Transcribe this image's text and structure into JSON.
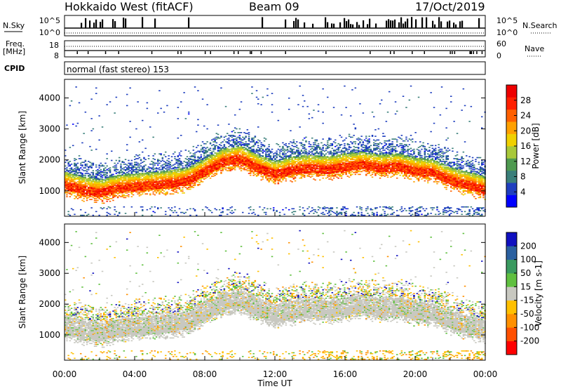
{
  "header": {
    "title": "Hokkaido West (fitACF)",
    "beam": "Beam 09",
    "date": "17/Oct/2019"
  },
  "noise_panel": {
    "left_label": "N.Sky",
    "right_label": "N.Search",
    "y_top": "10^5",
    "y_bottom": "10^0",
    "r_top": "10^5",
    "r_bottom": "10^0"
  },
  "freq_panel": {
    "left_label": "Freq.",
    "left_unit": "[MHz]",
    "right_label": "Nave",
    "y_top": "18",
    "y_bottom": "8",
    "r_top": "60",
    "r_bottom": "0"
  },
  "cpid": {
    "label": "CPID",
    "mode": "normal (fast stereo) 153"
  },
  "power_colorbar": {
    "title": "Power [dB]",
    "ticks": [
      "4",
      "8",
      "12",
      "16",
      "20",
      "24",
      "28"
    ],
    "colors": [
      "#0000ff",
      "#1f3fbf",
      "#3a7f7a",
      "#4f9a50",
      "#a8c83a",
      "#f0d000",
      "#ffa000",
      "#ff6000",
      "#ff2000",
      "#ee0000"
    ]
  },
  "velocity_colorbar": {
    "title": "Velocity [m s-1]",
    "ticks": [
      "200",
      "100",
      "50",
      "15",
      "-15",
      "-50",
      "-100",
      "-200"
    ],
    "colors": [
      "#1010c0",
      "#2a60a0",
      "#3a9a60",
      "#60c040",
      "#c8c8c0",
      "#ffc000",
      "#ff9000",
      "#ff5000",
      "#ff0000"
    ]
  },
  "x_axis": {
    "label": "Time UT",
    "ticks": [
      "00:00",
      "04:00",
      "08:00",
      "12:00",
      "16:00",
      "20:00",
      "00:00"
    ]
  },
  "chart_data": [
    {
      "type": "heatmap",
      "name": "power",
      "ylabel": "Slant Range [km]",
      "y_ticks": [
        1000,
        2000,
        3000,
        4000
      ],
      "ylim": [
        180,
        4600
      ],
      "xlim_hours": [
        0,
        24
      ],
      "band_center_km": [
        [
          0,
          1150
        ],
        [
          1,
          1000
        ],
        [
          2,
          900
        ],
        [
          3,
          1050
        ],
        [
          4,
          1100
        ],
        [
          5,
          1150
        ],
        [
          6,
          1200
        ],
        [
          7,
          1300
        ],
        [
          8,
          1600
        ],
        [
          9,
          1900
        ],
        [
          10,
          2000
        ],
        [
          11,
          1700
        ],
        [
          12,
          1500
        ],
        [
          13,
          1650
        ],
        [
          14,
          1700
        ],
        [
          15,
          1650
        ],
        [
          16,
          1750
        ],
        [
          17,
          1800
        ],
        [
          18,
          1700
        ],
        [
          19,
          1750
        ],
        [
          20,
          1600
        ],
        [
          21,
          1550
        ],
        [
          22,
          1300
        ],
        [
          23,
          1150
        ],
        [
          24,
          1000
        ]
      ],
      "band_peak_db": 28,
      "colorbar_range_db": [
        0,
        32
      ]
    },
    {
      "type": "heatmap",
      "name": "velocity",
      "ylabel": "Slant Range [km]",
      "y_ticks": [
        1000,
        2000,
        3000,
        4000
      ],
      "ylim": [
        180,
        4600
      ],
      "xlim_hours": [
        0,
        24
      ],
      "dominant_value_ms": 0,
      "colorbar_range_ms": [
        -250,
        250
      ]
    }
  ]
}
